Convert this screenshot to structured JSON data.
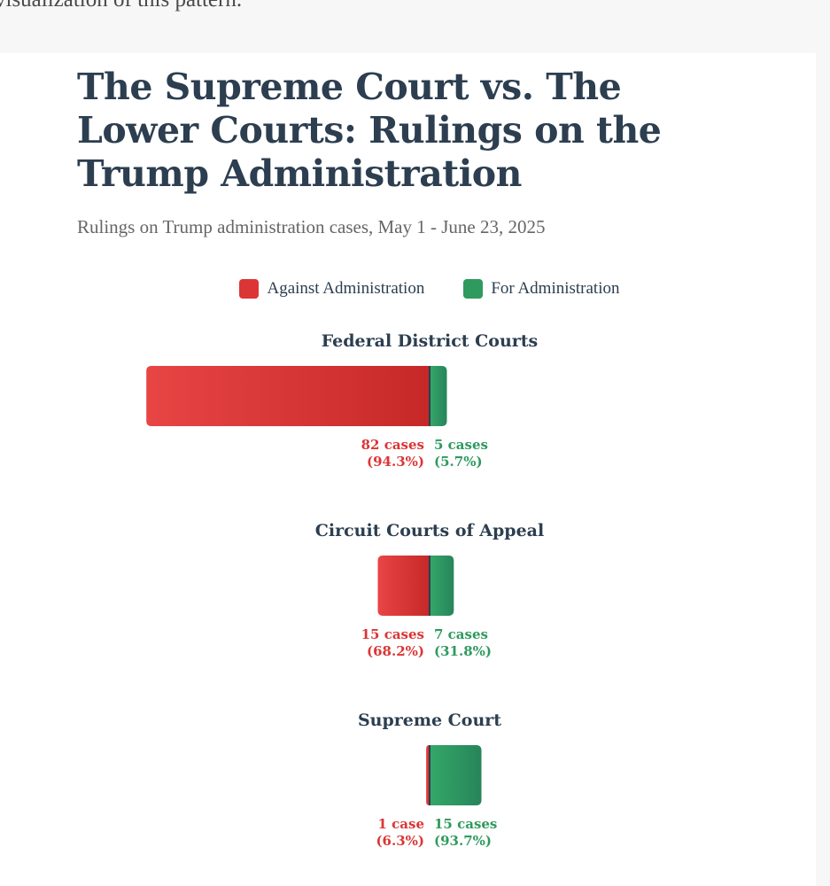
{
  "page": {
    "intro_text": "visualization of this pattern."
  },
  "chart_data": {
    "type": "bar",
    "orientation": "horizontal-stacked",
    "title": "The Supreme Court vs. The Lower Courts: Rulings on the Trump Administration",
    "subtitle": "Rulings on Trump administration cases, May 1 - June 23, 2025",
    "legend": [
      {
        "name": "Against Administration",
        "color": "#dc3535"
      },
      {
        "name": "For Administration",
        "color": "#2e9a5e"
      }
    ],
    "categories": [
      "Federal District Courts",
      "Circuit Courts of Appeal",
      "Supreme Court"
    ],
    "series": [
      {
        "name": "Against Administration",
        "values": [
          82,
          15,
          1
        ],
        "case_labels": [
          "82 cases",
          "15 cases",
          "1 case"
        ],
        "pct_labels": [
          "(94.3%)",
          "(68.2%)",
          "(6.3%)"
        ]
      },
      {
        "name": "For Administration",
        "values": [
          5,
          7,
          15
        ],
        "case_labels": [
          "5 cases",
          "7 cases",
          "15 cases"
        ],
        "pct_labels": [
          "(5.7%)",
          "(31.8%)",
          "(93.7%)"
        ]
      }
    ]
  },
  "colors": {
    "against": "#dc3535",
    "against_light": "#e84545",
    "against_dark": "#c62828",
    "for": "#2e9a5e",
    "for_light": "#34a868",
    "for_dark": "#27845a",
    "divider": "#2c3e50",
    "title": "#2c3e50"
  }
}
